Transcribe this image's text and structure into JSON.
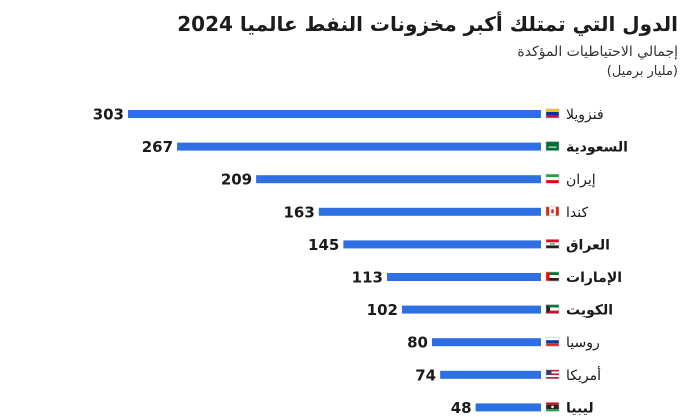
{
  "chart_data": {
    "type": "bar",
    "orientation": "horizontal",
    "title": "الدول التي تمتلك أكبر مخزونات النفط عالميا 2024",
    "subtitle": "إجمالي الاحتياطيات المؤكدة",
    "unit": "(مليار برميل)",
    "categories": [
      "فنزويلا",
      "السعودية",
      "إيران",
      "كندا",
      "العراق",
      "الإمارات",
      "الكويت",
      "روسيا",
      "أمريكا",
      "ليبيا"
    ],
    "values": [
      303,
      267,
      209,
      163,
      145,
      113,
      102,
      80,
      74,
      48
    ],
    "bold_categories": [
      "السعودية",
      "العراق",
      "الإمارات",
      "الكويت",
      "ليبيا"
    ],
    "xlim": [
      0,
      303
    ],
    "grid": false,
    "bar_color": "#2f6fe4",
    "flag_icons": [
      "venezuela-flag",
      "saudi-flag",
      "iran-flag",
      "canada-flag",
      "iraq-flag",
      "uae-flag",
      "kuwait-flag",
      "russia-flag",
      "usa-flag",
      "libya-flag"
    ]
  }
}
